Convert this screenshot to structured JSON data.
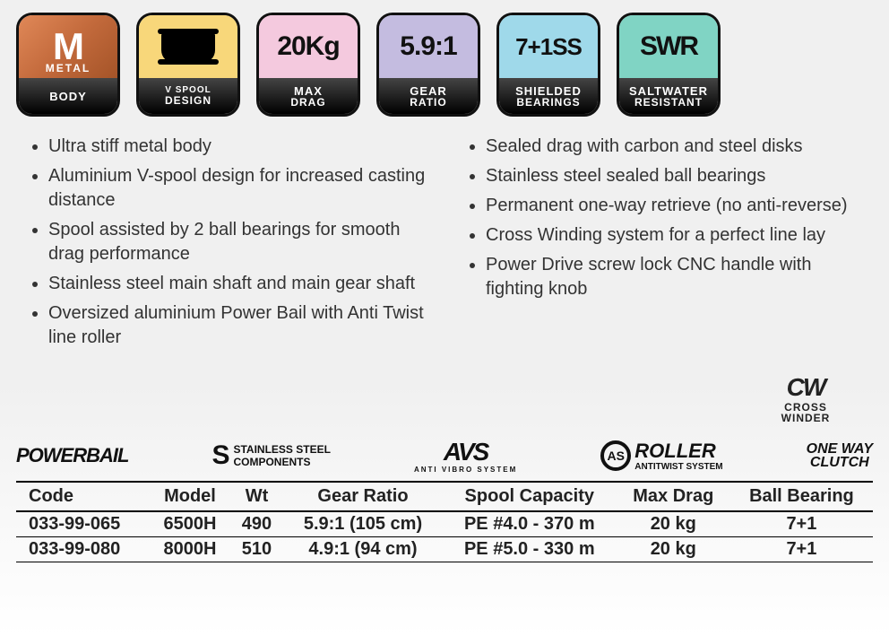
{
  "badges": [
    {
      "top": "M",
      "toplabel": "METAL",
      "line1": "BODY",
      "line2": "",
      "bg": "#d07848"
    },
    {
      "top": "",
      "toplabel": "",
      "line1": "V SPOOL",
      "line2": "DESIGN",
      "bg": "#f8d77a"
    },
    {
      "top": "20Kg",
      "toplabel": "",
      "line1": "MAX",
      "line2": "DRAG",
      "bg": "#f4c9de"
    },
    {
      "top": "5.9:1",
      "toplabel": "",
      "line1": "GEAR",
      "line2": "RATIO",
      "bg": "#c4bce0"
    },
    {
      "top": "7+1SS",
      "toplabel": "",
      "line1": "SHIELDED",
      "line2": "BEARINGS",
      "bg": "#9fd9ea"
    },
    {
      "top": "SWR",
      "toplabel": "",
      "line1": "SALTWATER",
      "line2": "RESISTANT",
      "bg": "#80d4c4"
    }
  ],
  "features_left": [
    "Ultra stiff metal body",
    "Aluminium V-spool design for increased casting distance",
    "Spool assisted by 2 ball bearings for smooth drag performance",
    "Stainless steel main shaft and main gear shaft",
    "Oversized aluminium Power Bail with Anti Twist line roller"
  ],
  "features_right": [
    "Sealed drag with carbon and steel disks",
    "Stainless steel sealed ball bearings",
    "Permanent one-way retrieve (no anti-reverse)",
    "Cross Winding system for a perfect line lay",
    "Power Drive screw lock CNC handle with fighting knob"
  ],
  "crosswinder": {
    "main": "CW",
    "sub1": "CROSS",
    "sub2": "WINDER"
  },
  "logos": {
    "powerbail": "POWERBAIL",
    "ss_line1": "STAINLESS STEEL",
    "ss_line2": "COMPONENTS",
    "avs": "AVS",
    "avs_sub": "ANTI VIBRO SYSTEM",
    "roller": "ROLLER",
    "roller_sub": "ANTITWIST SYSTEM",
    "roller_circ": "AS",
    "owc1": "ONE WAY",
    "owc2": "CLUTCH"
  },
  "table": {
    "columns": [
      "Code",
      "Model",
      "Wt",
      "Gear Ratio",
      "Spool Capacity",
      "Max Drag",
      "Ball Bearing"
    ],
    "rows": [
      [
        "033-99-065",
        "6500H",
        "490",
        "5.9:1 (105 cm)",
        "PE #4.0 - 370 m",
        "20 kg",
        "7+1"
      ],
      [
        "033-99-080",
        "8000H",
        "510",
        "4.9:1 (94 cm)",
        "PE #5.0 - 330 m",
        "20 kg",
        "7+1"
      ]
    ]
  }
}
